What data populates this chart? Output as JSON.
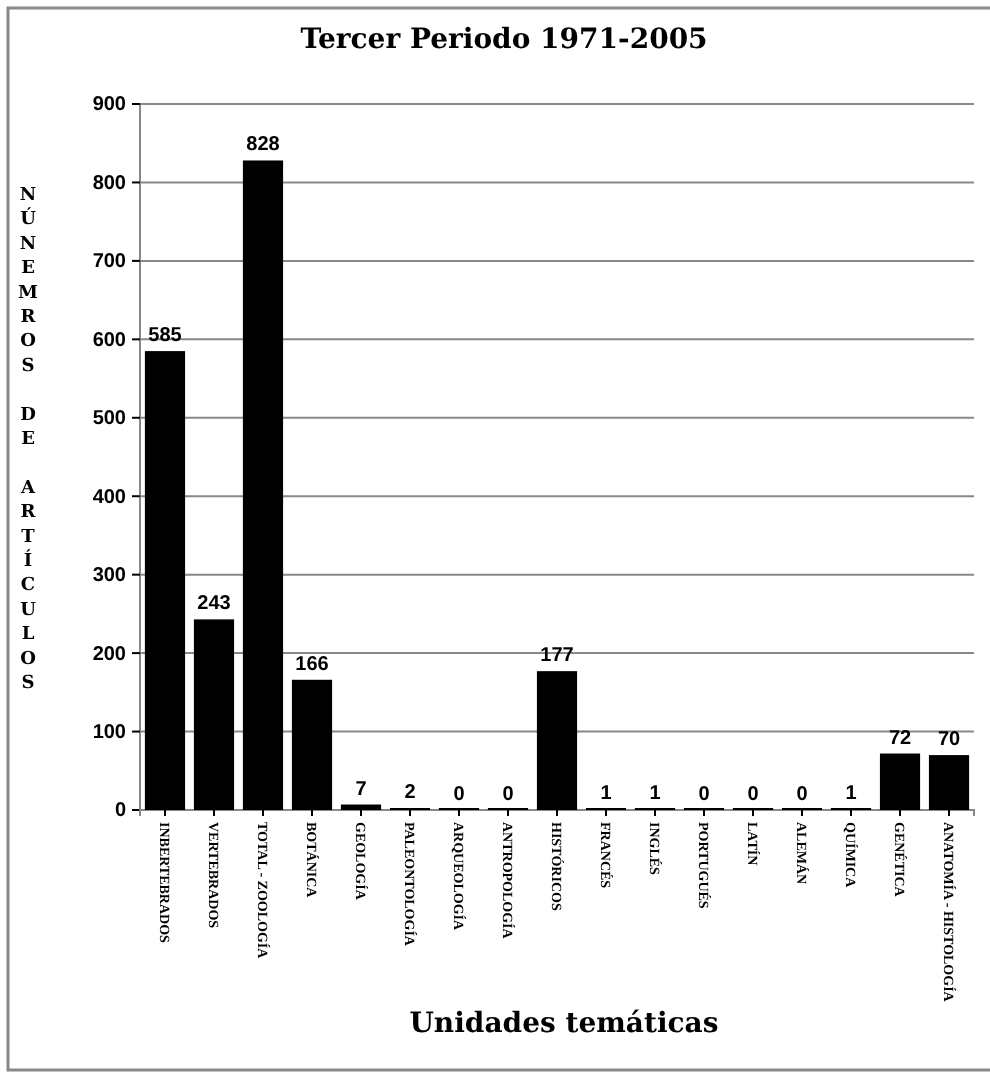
{
  "chart_data": {
    "type": "bar",
    "title": "Tercer Periodo 1971-2005",
    "xlabel": "Unidades temáticas",
    "ylabel": "NÚNEMROS DE ARTÍCULOS",
    "categories": [
      "INBERTEBRADOS",
      "VERTEBRADOS",
      "TOTAL - ZOOLOGÍA",
      "BOTÁNICA",
      "GEOLOGÍA",
      "PALEONTOLOGÍA",
      "ARQUEOLOGÍA",
      "ANTROPOLOGÍA",
      "HISTÓRICOS",
      "FRANCÉS",
      "INGLÉS",
      "PORTUGUÉS",
      "LATÍN",
      "ALEMÁN",
      "QUÍMICA",
      "GENÉTICA",
      "ANATOMÍA - HISTOLOGÍA"
    ],
    "values": [
      585,
      243,
      828,
      166,
      7,
      2,
      0,
      0,
      177,
      1,
      1,
      0,
      0,
      0,
      1,
      72,
      70
    ],
    "color": "#000000",
    "ylim": [
      0,
      900
    ],
    "yticks": [
      0,
      100,
      200,
      300,
      400,
      500,
      600,
      700,
      800,
      900
    ],
    "grid": "y",
    "data_labels": true
  }
}
